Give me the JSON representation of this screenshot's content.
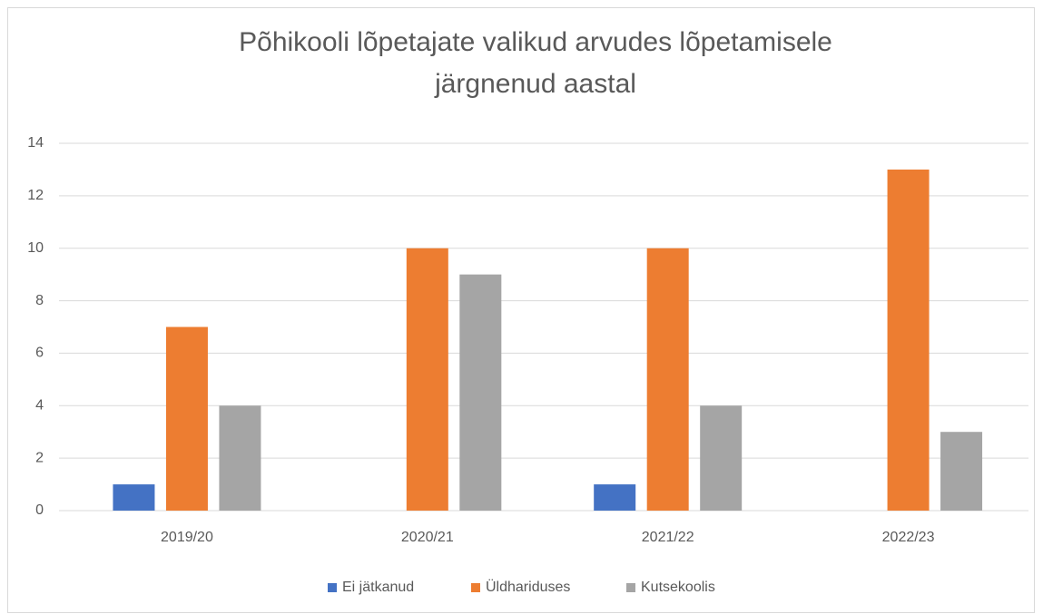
{
  "chart_data": {
    "type": "bar",
    "title": [
      "Põhikooli lõpetajate valikud arvudes lõpetamisele",
      "järgnenud aastal"
    ],
    "categories": [
      "2019/20",
      "2020/21",
      "2021/22",
      "2022/23"
    ],
    "series": [
      {
        "name": "Ei jätkanud",
        "color": "#4472c4",
        "values": [
          1,
          0,
          1,
          0
        ]
      },
      {
        "name": "Üldhariduses",
        "color": "#ed7d31",
        "values": [
          7,
          10,
          10,
          13
        ]
      },
      {
        "name": "Kutsekoolis",
        "color": "#a5a5a5",
        "values": [
          4,
          9,
          4,
          3
        ]
      }
    ],
    "ylim": [
      0,
      14
    ],
    "yticks": [
      0,
      2,
      4,
      6,
      8,
      10,
      12,
      14
    ],
    "grid": true,
    "legend": "bottom"
  }
}
